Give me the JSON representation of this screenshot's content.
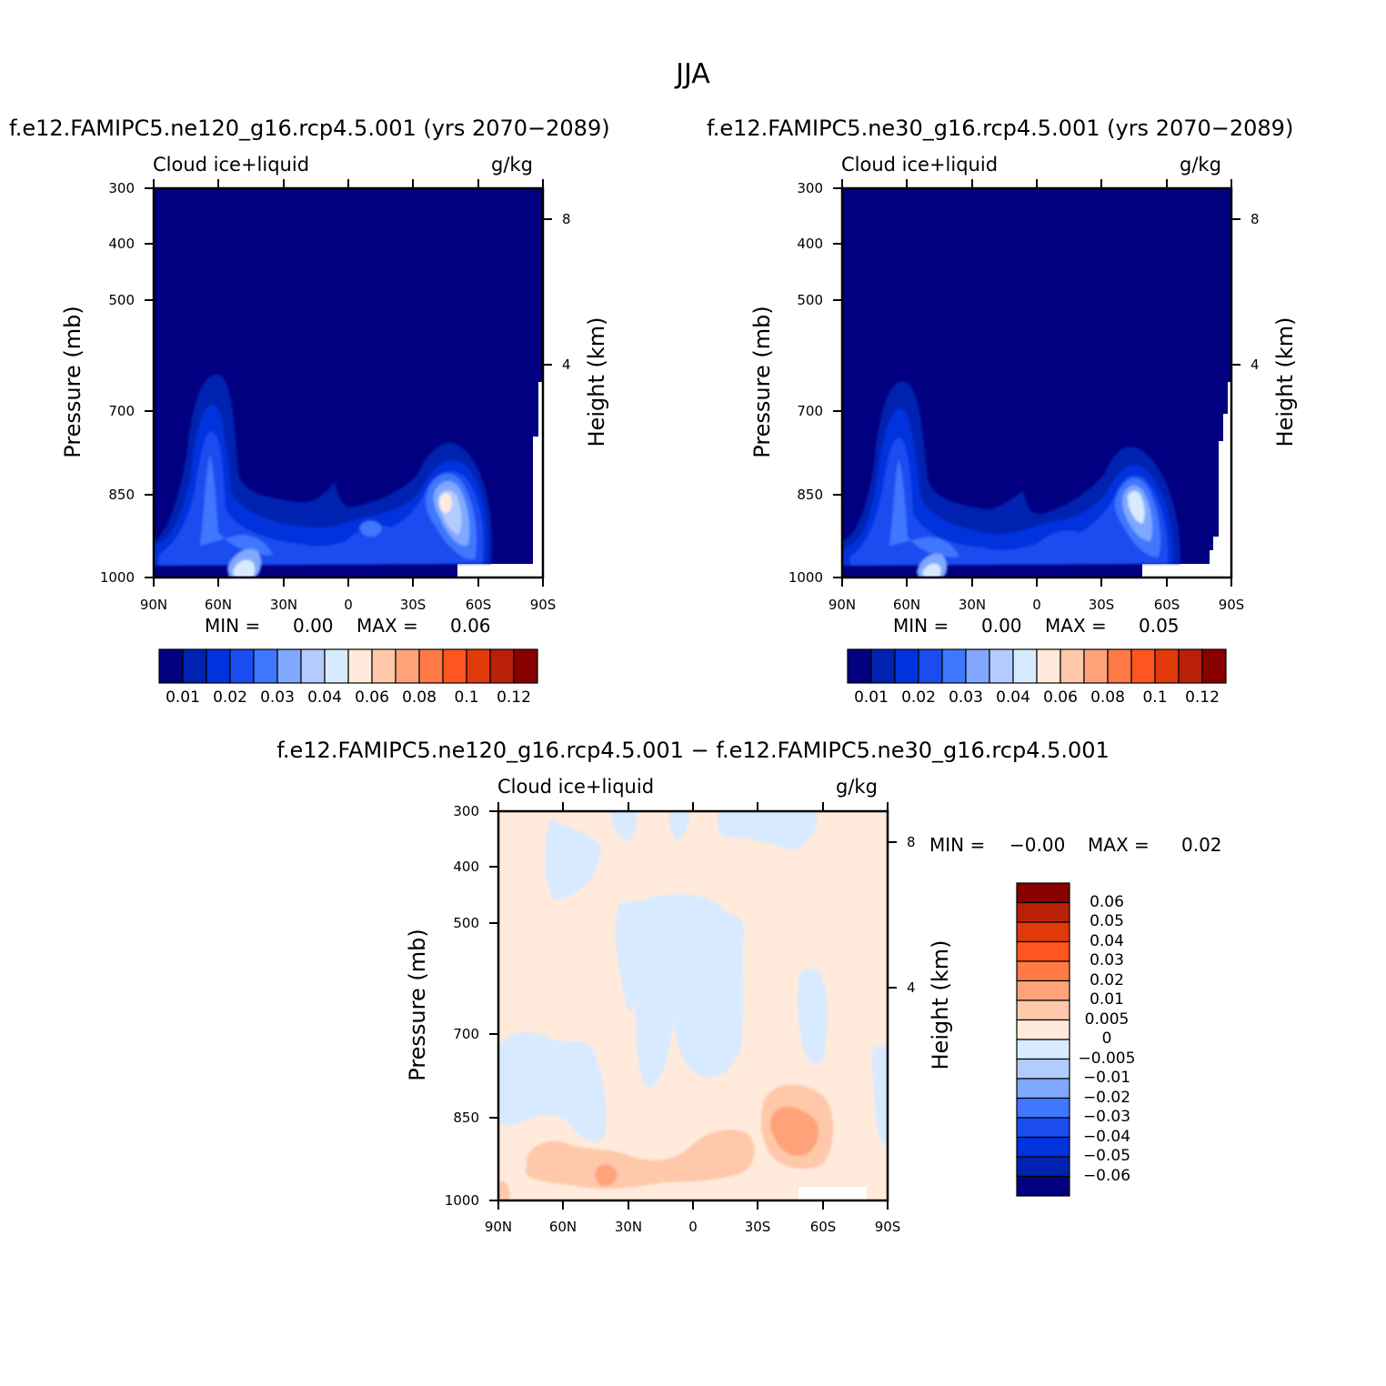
{
  "title": "JJA",
  "variable": "Cloud ice+liquid",
  "units": "g/kg",
  "y_label": "Pressure (mb)",
  "y2_label": "Height (km)",
  "pressure_ticks": [
    "300",
    "400",
    "500",
    "700",
    "850",
    "1000"
  ],
  "height_ticks": [
    "8",
    "4"
  ],
  "lat_ticks": [
    "90N",
    "60N",
    "30N",
    "0",
    "30S",
    "60S",
    "90S"
  ],
  "panels": [
    {
      "id": "ne120",
      "title": "f.e12.FAMIPC5.ne120_g16.rcp4.5.001 (yrs 2070−2089)",
      "min_label": "MIN =",
      "min_value": "0.00",
      "max_label": "MAX =",
      "max_value": "0.06"
    },
    {
      "id": "ne30",
      "title": "f.e12.FAMIPC5.ne30_g16.rcp4.5.001 (yrs 2070−2089)",
      "min_label": "MIN =",
      "min_value": "0.00",
      "max_label": "MAX =",
      "max_value": "0.05"
    },
    {
      "id": "diff",
      "title": "f.e12.FAMIPC5.ne120_g16.rcp4.5.001 − f.e12.FAMIPC5.ne30_g16.rcp4.5.001",
      "min_label": "MIN =",
      "min_value": "−0.00",
      "max_label": "MAX =",
      "max_value": "0.02"
    }
  ],
  "colorbar_main": {
    "labels": [
      "0.01",
      "0.02",
      "0.03",
      "0.04",
      "0.06",
      "0.08",
      "0.1",
      "0.12"
    ],
    "colors": [
      "#000080",
      "#0022b0",
      "#0033dd",
      "#1a4cf0",
      "#3f77ff",
      "#80a8ff",
      "#b3ccff",
      "#d8eaff",
      "#ffeadb",
      "#ffc8aa",
      "#ffa27a",
      "#ff7a45",
      "#ff5520",
      "#e03a0a",
      "#b82008",
      "#880000"
    ]
  },
  "colorbar_diff": {
    "labels": [
      "0.06",
      "0.05",
      "0.04",
      "0.03",
      "0.02",
      "0.01",
      "0.005",
      "0",
      "−0.005",
      "−0.01",
      "−0.02",
      "−0.03",
      "−0.04",
      "−0.05",
      "−0.06"
    ],
    "colors": [
      "#880000",
      "#b82008",
      "#e03a0a",
      "#ff5520",
      "#ff7a45",
      "#ffa27a",
      "#ffc8aa",
      "#ffeadb",
      "#d8eaff",
      "#b3ccff",
      "#80a8ff",
      "#3f77ff",
      "#1a4cf0",
      "#0033dd",
      "#0022b0",
      "#000080"
    ]
  },
  "chart_data": [
    {
      "type": "heatmap",
      "title": "f.e12.FAMIPC5.ne120_g16.rcp4.5.001 (yrs 2070−2089)",
      "variable": "Cloud ice+liquid",
      "units": "g/kg",
      "x": "latitude 90N to 90S",
      "y": "pressure 1000 to 300 mb",
      "min": 0.0,
      "max": 0.06,
      "features": [
        {
          "lat": 50,
          "pressure": 920,
          "value": 0.04
        },
        {
          "lat": 65,
          "pressure": 780,
          "value": 0.02
        },
        {
          "lat": -45,
          "pressure": 860,
          "value": 0.06
        }
      ]
    },
    {
      "type": "heatmap",
      "title": "f.e12.FAMIPC5.ne30_g16.rcp4.5.001 (yrs 2070−2089)",
      "variable": "Cloud ice+liquid",
      "units": "g/kg",
      "x": "latitude 90N to 90S",
      "y": "pressure 1000 to 300 mb",
      "min": 0.0,
      "max": 0.05,
      "features": [
        {
          "lat": 48,
          "pressure": 930,
          "value": 0.04
        },
        {
          "lat": 65,
          "pressure": 780,
          "value": 0.02
        },
        {
          "lat": -45,
          "pressure": 860,
          "value": 0.05
        }
      ]
    },
    {
      "type": "heatmap",
      "title": "f.e12.FAMIPC5.ne120_g16.rcp4.5.001 − f.e12.FAMIPC5.ne30_g16.rcp4.5.001",
      "variable": "Cloud ice+liquid",
      "units": "g/kg",
      "x": "latitude 90N to 90S",
      "y": "pressure 1000 to 300 mb",
      "min": -0.0,
      "max": 0.02,
      "features": [
        {
          "lat": 40,
          "pressure": 950,
          "value": 0.01
        },
        {
          "lat": -48,
          "pressure": 870,
          "value": 0.02
        },
        {
          "lat": 0,
          "pressure": 550,
          "value": -0.005
        }
      ]
    }
  ]
}
